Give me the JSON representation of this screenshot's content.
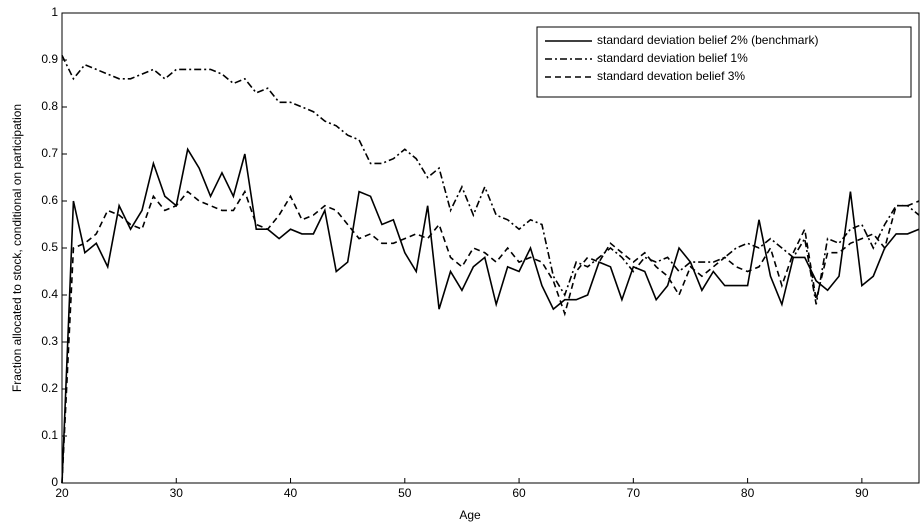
{
  "chart_data": {
    "type": "line",
    "xlabel": "Age",
    "ylabel": "Fraction allocated to stock, conditional on participation",
    "x": [
      20,
      21,
      22,
      23,
      24,
      25,
      26,
      27,
      28,
      29,
      30,
      31,
      32,
      33,
      34,
      35,
      36,
      37,
      38,
      39,
      40,
      41,
      42,
      43,
      44,
      45,
      46,
      47,
      48,
      49,
      50,
      51,
      52,
      53,
      54,
      55,
      56,
      57,
      58,
      59,
      60,
      61,
      62,
      63,
      64,
      65,
      66,
      67,
      68,
      69,
      70,
      71,
      72,
      73,
      74,
      75,
      76,
      77,
      78,
      79,
      80,
      81,
      82,
      83,
      84,
      85,
      86,
      87,
      88,
      89,
      90,
      91,
      92,
      93,
      94,
      95
    ],
    "series": [
      {
        "name": "standard deviation belief 2% (benchmark)",
        "color": "#000000",
        "line_style": "solid",
        "values": [
          0,
          0.6,
          0.49,
          0.51,
          0.46,
          0.59,
          0.54,
          0.58,
          0.68,
          0.61,
          0.59,
          0.71,
          0.67,
          0.61,
          0.66,
          0.61,
          0.7,
          0.54,
          0.54,
          0.52,
          0.54,
          0.53,
          0.53,
          0.58,
          0.45,
          0.47,
          0.62,
          0.61,
          0.55,
          0.56,
          0.49,
          0.45,
          0.59,
          0.37,
          0.45,
          0.41,
          0.46,
          0.48,
          0.38,
          0.46,
          0.45,
          0.5,
          0.42,
          0.37,
          0.39,
          0.39,
          0.4,
          0.47,
          0.46,
          0.39,
          0.46,
          0.45,
          0.39,
          0.42,
          0.5,
          0.47,
          0.41,
          0.45,
          0.42,
          0.42,
          0.42,
          0.56,
          0.44,
          0.38,
          0.48,
          0.48,
          0.43,
          0.41,
          0.44,
          0.62,
          0.42,
          0.44,
          0.5,
          0.53,
          0.53,
          0.54
        ]
      },
      {
        "name": "standard deviation belief 1%",
        "color": "#000000",
        "line_style": "dashdot",
        "values": [
          0.91,
          0.86,
          0.89,
          0.88,
          0.87,
          0.86,
          0.86,
          0.87,
          0.88,
          0.86,
          0.88,
          0.88,
          0.88,
          0.88,
          0.87,
          0.85,
          0.86,
          0.83,
          0.84,
          0.81,
          0.81,
          0.8,
          0.79,
          0.77,
          0.76,
          0.74,
          0.73,
          0.68,
          0.68,
          0.69,
          0.71,
          0.69,
          0.65,
          0.67,
          0.58,
          0.63,
          0.57,
          0.63,
          0.57,
          0.56,
          0.54,
          0.56,
          0.55,
          0.44,
          0.4,
          0.47,
          0.46,
          0.48,
          0.5,
          0.48,
          0.45,
          0.48,
          0.47,
          0.48,
          0.45,
          0.47,
          0.47,
          0.47,
          0.48,
          0.5,
          0.51,
          0.5,
          0.52,
          0.5,
          0.48,
          0.52,
          0.38,
          0.52,
          0.51,
          0.54,
          0.55,
          0.5,
          0.55,
          0.59,
          0.59,
          0.57
        ]
      },
      {
        "name": "standard devation belief 3%",
        "color": "#000000",
        "line_style": "dashed",
        "values": [
          0,
          0.5,
          0.51,
          0.53,
          0.58,
          0.57,
          0.55,
          0.54,
          0.61,
          0.58,
          0.59,
          0.62,
          0.6,
          0.59,
          0.58,
          0.58,
          0.62,
          0.55,
          0.54,
          0.57,
          0.61,
          0.56,
          0.57,
          0.59,
          0.58,
          0.55,
          0.52,
          0.53,
          0.51,
          0.51,
          0.52,
          0.53,
          0.52,
          0.55,
          0.48,
          0.46,
          0.5,
          0.49,
          0.47,
          0.5,
          0.47,
          0.48,
          0.47,
          0.43,
          0.36,
          0.45,
          0.48,
          0.47,
          0.51,
          0.49,
          0.47,
          0.49,
          0.46,
          0.44,
          0.4,
          0.46,
          0.44,
          0.46,
          0.48,
          0.46,
          0.45,
          0.46,
          0.5,
          0.42,
          0.49,
          0.54,
          0.39,
          0.49,
          0.49,
          0.51,
          0.52,
          0.53,
          0.5,
          0.59,
          0.59,
          0.6
        ]
      }
    ],
    "xlim": [
      20,
      95
    ],
    "ylim": [
      0,
      1
    ],
    "xticks": [
      20,
      30,
      40,
      50,
      60,
      70,
      80,
      90
    ],
    "yticks": [
      0,
      0.1,
      0.2,
      0.3,
      0.4,
      0.5,
      0.6,
      0.7,
      0.8,
      0.9,
      1
    ],
    "grid": false,
    "legend": "upper right"
  }
}
